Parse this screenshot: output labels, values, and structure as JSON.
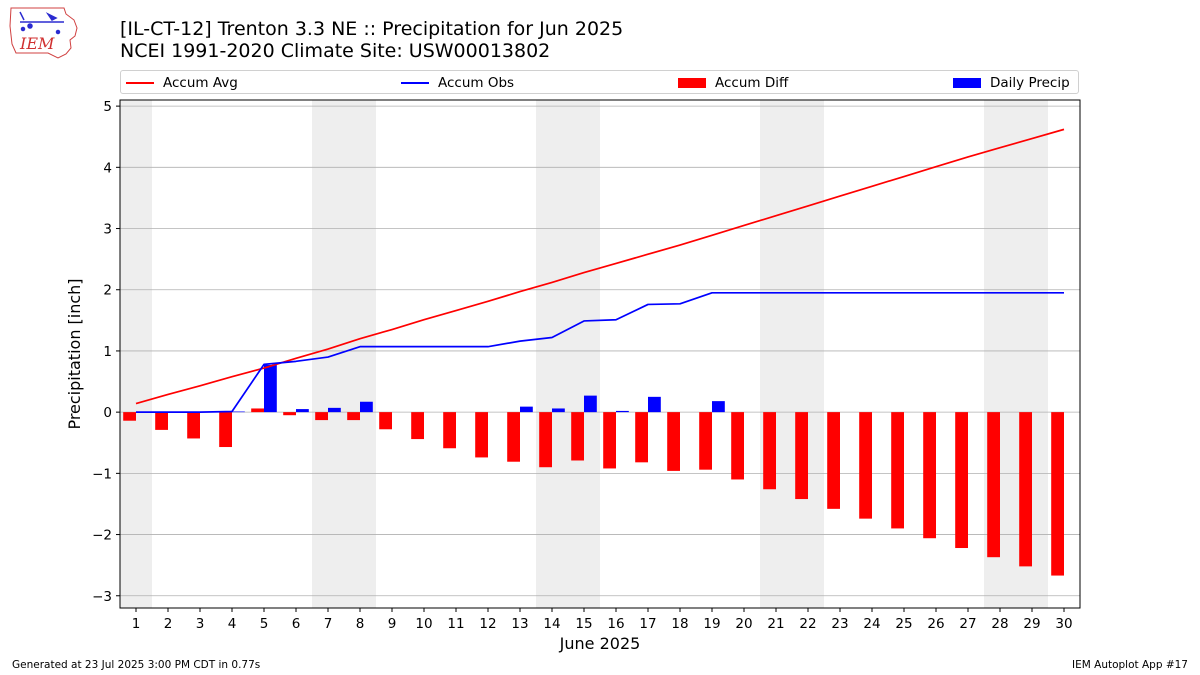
{
  "header": {
    "logo_text": "IEM",
    "title_line1": "[IL-CT-12] Trenton 3.3 NE :: Precipitation for Jun 2025",
    "title_line2": "NCEI 1991-2020 Climate Site: USW00013802"
  },
  "legend": {
    "accum_avg": "Accum Avg",
    "accum_obs": "Accum Obs",
    "accum_diff": "Accum Diff",
    "daily_precip": "Daily Precip"
  },
  "colors": {
    "accum_avg": "#ff0000",
    "accum_obs": "#0000ff",
    "accum_diff": "#ff0000",
    "daily_precip": "#0000ff",
    "weekend_shade": "#eeeeee",
    "grid": "#b0b0b0"
  },
  "footer": {
    "left": "Generated at 23 Jul 2025 3:00 PM CDT in 0.77s",
    "right": "IEM Autoplot App #17"
  },
  "chart_data": {
    "type": "bar",
    "xlabel": "June 2025",
    "ylabel": "Precipitation [inch]",
    "ylim": [
      -3.2,
      5.1
    ],
    "yticks": [
      -3,
      -2,
      -1,
      0,
      1,
      2,
      3,
      4,
      5
    ],
    "xlim": [
      0.5,
      30.5
    ],
    "grid": "horizontal",
    "legend_position": "top",
    "days": [
      1,
      2,
      3,
      4,
      5,
      6,
      7,
      8,
      9,
      10,
      11,
      12,
      13,
      14,
      15,
      16,
      17,
      18,
      19,
      20,
      21,
      22,
      23,
      24,
      25,
      26,
      27,
      28,
      29,
      30
    ],
    "shaded_days": [
      [
        0.5,
        1.5
      ],
      [
        6.5,
        8.5
      ],
      [
        13.5,
        15.5
      ],
      [
        20.5,
        22.5
      ],
      [
        27.5,
        29.5
      ]
    ],
    "series": [
      {
        "name": "Accum Avg",
        "type": "line",
        "values": [
          0.14,
          0.29,
          0.43,
          0.58,
          0.72,
          0.88,
          1.03,
          1.2,
          1.35,
          1.51,
          1.66,
          1.81,
          1.97,
          2.12,
          2.28,
          2.43,
          2.58,
          2.73,
          2.89,
          3.05,
          3.21,
          3.37,
          3.53,
          3.69,
          3.85,
          4.01,
          4.17,
          4.32,
          4.47,
          4.62
        ]
      },
      {
        "name": "Accum Obs",
        "type": "line",
        "values": [
          0.0,
          0.0,
          0.0,
          0.01,
          0.78,
          0.83,
          0.9,
          1.07,
          1.07,
          1.07,
          1.07,
          1.07,
          1.16,
          1.22,
          1.49,
          1.51,
          1.76,
          1.77,
          1.95,
          1.95,
          1.95,
          1.95,
          1.95,
          1.95,
          1.95,
          1.95,
          1.95,
          1.95,
          1.95,
          1.95
        ]
      },
      {
        "name": "Accum Diff",
        "type": "bar",
        "values": [
          -0.14,
          -0.29,
          -0.43,
          -0.57,
          0.06,
          -0.05,
          -0.13,
          -0.13,
          -0.28,
          -0.44,
          -0.59,
          -0.74,
          -0.81,
          -0.9,
          -0.79,
          -0.92,
          -0.82,
          -0.96,
          -0.94,
          -1.1,
          -1.26,
          -1.42,
          -1.58,
          -1.74,
          -1.9,
          -2.06,
          -2.22,
          -2.37,
          -2.52,
          -2.67
        ]
      },
      {
        "name": "Daily Precip",
        "type": "bar",
        "values": [
          0.0,
          0.0,
          0.0,
          0.01,
          0.77,
          0.05,
          0.07,
          0.17,
          0.0,
          0.0,
          0.0,
          0.0,
          0.09,
          0.06,
          0.27,
          0.02,
          0.25,
          0.0,
          0.18,
          0.0,
          0.0,
          0.0,
          0.0,
          0.0,
          0.0,
          0.0,
          0.0,
          0.0,
          0.0,
          0.0
        ]
      }
    ]
  }
}
